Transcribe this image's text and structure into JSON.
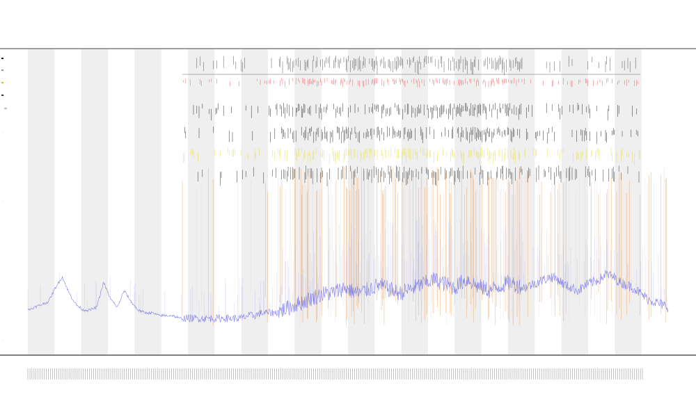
{
  "chart_data": {
    "type": "line",
    "title_lines": [
      "",
      "",
      ""
    ],
    "xlabel": "",
    "ylabel": "",
    "legend": {
      "placement": "top-left",
      "entries": [
        {
          "label": "",
          "color": "#111111"
        },
        {
          "label": "",
          "color": "#999999"
        },
        {
          "label": "",
          "color": "#e0c020"
        },
        {
          "label": "",
          "color": "#333333"
        }
      ]
    },
    "track_label": "",
    "track_label_2": "",
    "colors": {
      "signal": "#6a6ae6",
      "orange": "#f08a2c",
      "red": "#e63c3c",
      "yellow": "#e6dc3c",
      "black": "#111111",
      "band": "#efefef"
    },
    "grid": false,
    "band_count": 12,
    "ylim": [
      0,
      1
    ],
    "y_ticks": [],
    "x_tick_count": 300,
    "signal_profile": [
      0.06,
      0.07,
      0.08,
      0.09,
      0.14,
      0.18,
      0.12,
      0.08,
      0.06,
      0.06,
      0.07,
      0.16,
      0.1,
      0.07,
      0.13,
      0.09,
      0.06,
      0.05,
      0.05,
      0.04,
      0.04,
      0.04,
      0.03,
      0.03,
      0.03,
      0.03,
      0.03,
      0.03,
      0.03,
      0.03,
      0.03,
      0.03,
      0.04,
      0.04,
      0.05,
      0.05,
      0.05,
      0.06,
      0.07,
      0.08,
      0.09,
      0.1,
      0.11,
      0.12,
      0.12,
      0.13,
      0.14,
      0.13,
      0.12,
      0.13,
      0.14,
      0.15,
      0.14,
      0.13,
      0.12,
      0.13,
      0.14,
      0.15,
      0.16,
      0.17,
      0.16,
      0.15,
      0.14,
      0.16,
      0.17,
      0.15,
      0.14,
      0.13,
      0.14,
      0.15,
      0.16,
      0.15,
      0.14,
      0.15,
      0.16,
      0.17,
      0.18,
      0.17,
      0.15,
      0.14,
      0.13,
      0.15,
      0.16,
      0.17,
      0.19,
      0.18,
      0.16,
      0.15,
      0.14,
      0.12,
      0.1,
      0.09,
      0.08,
      0.07
    ]
  }
}
